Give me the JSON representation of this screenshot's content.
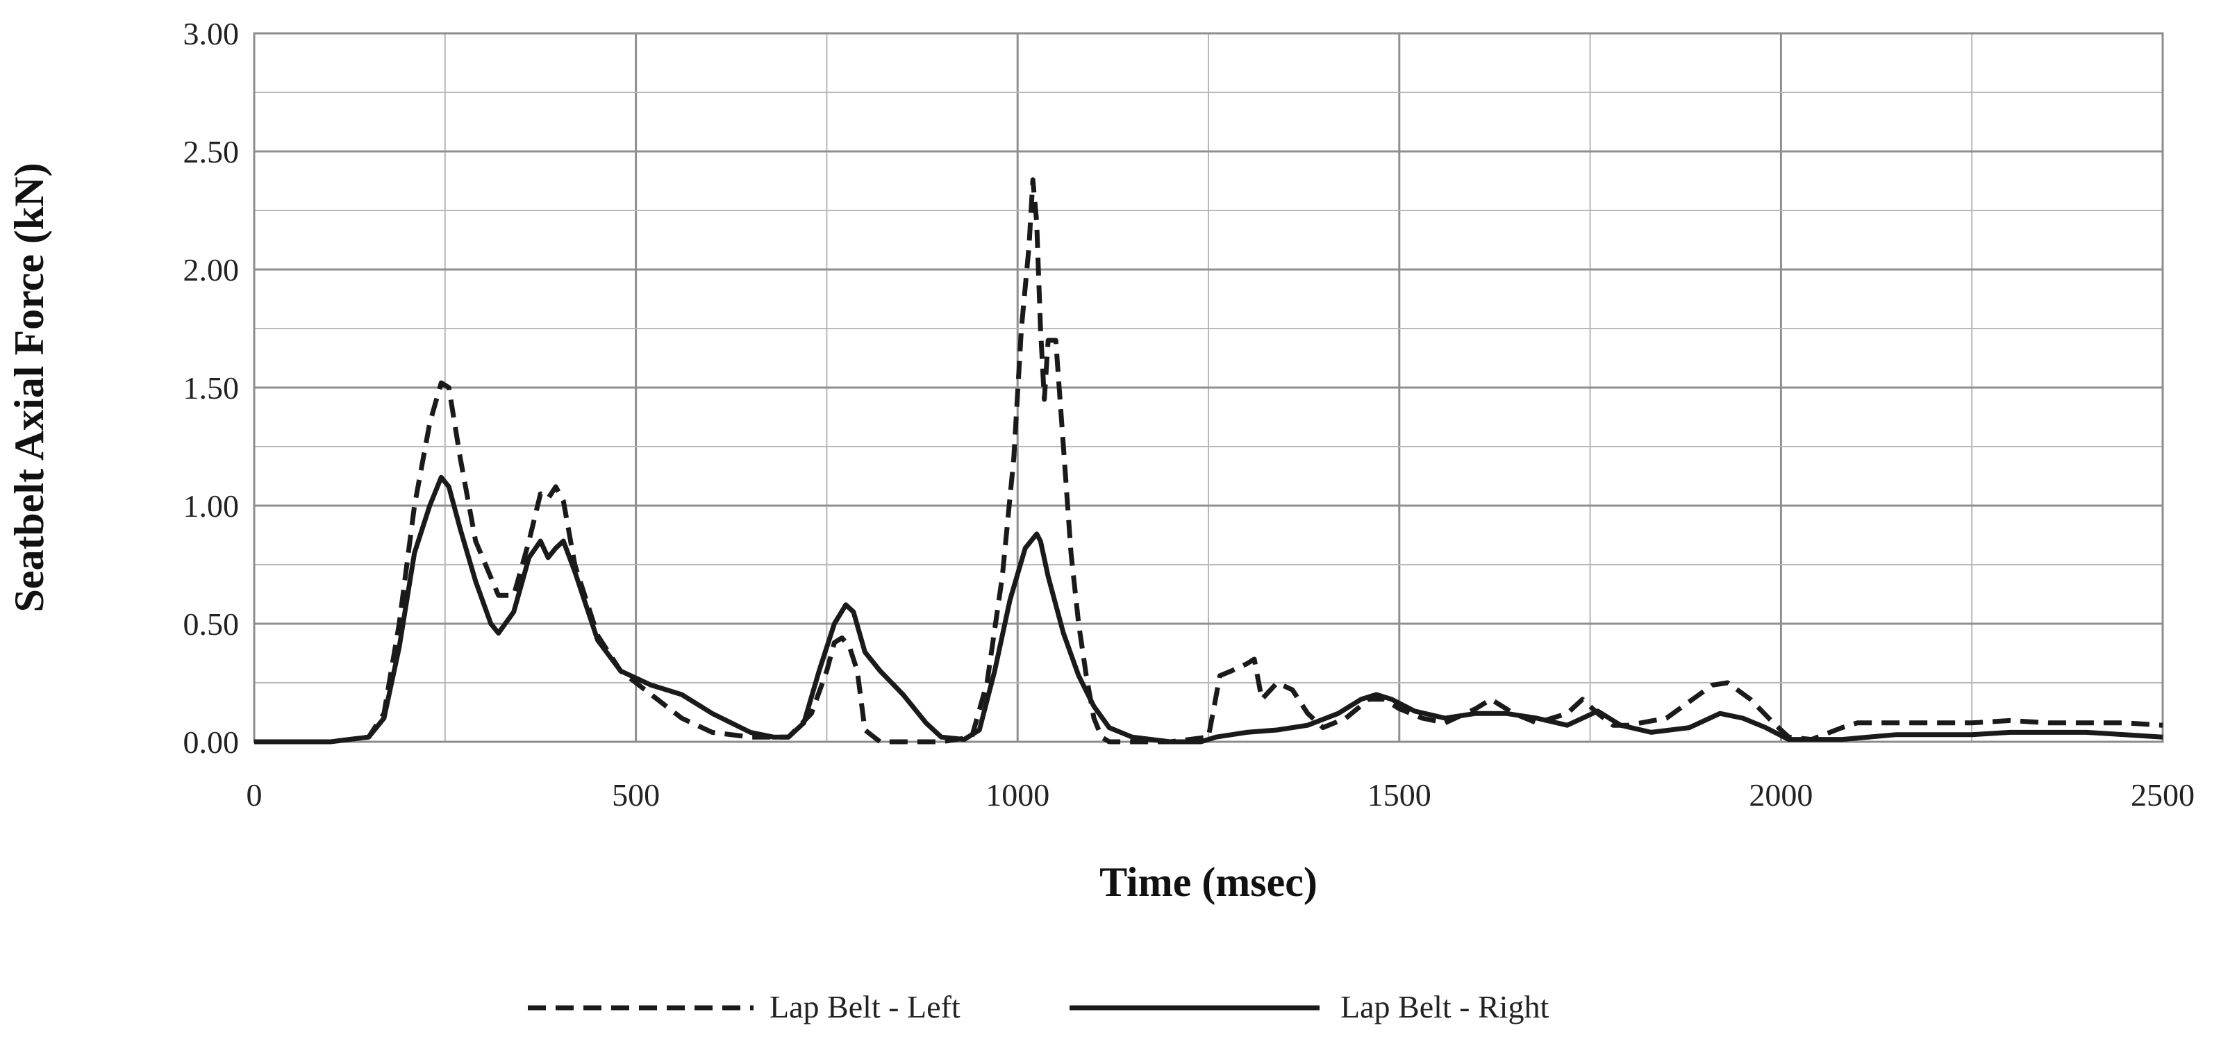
{
  "chart_data": {
    "type": "line",
    "xlabel": "Time (msec)",
    "ylabel": "Seatbelt Axial Force (kN)",
    "xlim": [
      0,
      2500
    ],
    "ylim": [
      0,
      3.0
    ],
    "xticks": [
      0,
      500,
      1000,
      1500,
      2000,
      2500
    ],
    "xtick_labels": [
      "0",
      "500",
      "1000",
      "1500",
      "2000",
      "2500"
    ],
    "yticks": [
      0,
      0.5,
      1.0,
      1.5,
      2.0,
      2.5,
      3.0
    ],
    "ytick_labels": [
      "0.00",
      "0.50",
      "1.00",
      "1.50",
      "2.00",
      "2.50",
      "3.00"
    ],
    "grid": true,
    "legend_position": "bottom",
    "series": [
      {
        "name": "Lap Belt - Left",
        "style": "dashed",
        "color": "#1a1a1a",
        "x": [
          0,
          100,
          150,
          170,
          190,
          210,
          230,
          245,
          255,
          270,
          290,
          320,
          340,
          360,
          375,
          385,
          395,
          405,
          420,
          450,
          480,
          520,
          560,
          600,
          650,
          700,
          730,
          750,
          760,
          770,
          780,
          790,
          800,
          820,
          850,
          900,
          940,
          960,
          980,
          995,
          1005,
          1015,
          1020,
          1025,
          1030,
          1035,
          1040,
          1050,
          1060,
          1070,
          1080,
          1090,
          1100,
          1110,
          1120,
          1200,
          1250,
          1265,
          1280,
          1300,
          1310,
          1320,
          1340,
          1360,
          1380,
          1400,
          1430,
          1460,
          1480,
          1500,
          1530,
          1560,
          1600,
          1620,
          1650,
          1680,
          1720,
          1740,
          1760,
          1780,
          1800,
          1850,
          1880,
          1910,
          1930,
          1960,
          1990,
          2010,
          2040,
          2080,
          2100,
          2150,
          2200,
          2250,
          2300,
          2350,
          2400,
          2450,
          2500
        ],
        "values": [
          0.0,
          0.0,
          0.02,
          0.12,
          0.5,
          1.0,
          1.35,
          1.52,
          1.5,
          1.2,
          0.85,
          0.62,
          0.62,
          0.85,
          1.05,
          1.03,
          1.08,
          1.02,
          0.75,
          0.45,
          0.3,
          0.2,
          0.1,
          0.04,
          0.02,
          0.02,
          0.12,
          0.3,
          0.42,
          0.44,
          0.4,
          0.3,
          0.05,
          0.0,
          0.0,
          0.0,
          0.02,
          0.25,
          0.7,
          1.2,
          1.75,
          2.1,
          2.38,
          2.2,
          1.75,
          1.45,
          1.7,
          1.7,
          1.25,
          0.8,
          0.5,
          0.28,
          0.1,
          0.02,
          0.0,
          0.0,
          0.02,
          0.28,
          0.3,
          0.33,
          0.35,
          0.18,
          0.25,
          0.22,
          0.12,
          0.06,
          0.1,
          0.18,
          0.18,
          0.14,
          0.1,
          0.08,
          0.14,
          0.18,
          0.12,
          0.08,
          0.12,
          0.18,
          0.12,
          0.07,
          0.07,
          0.1,
          0.17,
          0.24,
          0.25,
          0.18,
          0.08,
          0.02,
          0.01,
          0.06,
          0.08,
          0.08,
          0.08,
          0.08,
          0.09,
          0.08,
          0.08,
          0.08,
          0.07
        ]
      },
      {
        "name": "Lap Belt - Right",
        "style": "solid",
        "color": "#1a1a1a",
        "x": [
          0,
          100,
          150,
          170,
          190,
          210,
          230,
          245,
          255,
          270,
          290,
          310,
          320,
          340,
          360,
          375,
          385,
          395,
          405,
          420,
          450,
          480,
          520,
          560,
          600,
          650,
          680,
          700,
          720,
          740,
          760,
          775,
          785,
          800,
          820,
          850,
          880,
          900,
          930,
          950,
          970,
          990,
          1010,
          1025,
          1030,
          1040,
          1060,
          1080,
          1100,
          1120,
          1150,
          1200,
          1240,
          1260,
          1280,
          1300,
          1340,
          1380,
          1420,
          1450,
          1470,
          1490,
          1520,
          1560,
          1600,
          1640,
          1680,
          1720,
          1740,
          1760,
          1790,
          1830,
          1880,
          1920,
          1950,
          1980,
          2010,
          2040,
          2080,
          2150,
          2200,
          2250,
          2300,
          2350,
          2400,
          2450,
          2500
        ],
        "values": [
          0.0,
          0.0,
          0.02,
          0.1,
          0.4,
          0.8,
          1.0,
          1.12,
          1.08,
          0.9,
          0.68,
          0.5,
          0.46,
          0.55,
          0.78,
          0.85,
          0.78,
          0.82,
          0.85,
          0.72,
          0.43,
          0.3,
          0.24,
          0.2,
          0.12,
          0.04,
          0.02,
          0.02,
          0.08,
          0.3,
          0.5,
          0.58,
          0.55,
          0.38,
          0.3,
          0.2,
          0.08,
          0.02,
          0.01,
          0.05,
          0.3,
          0.6,
          0.82,
          0.88,
          0.85,
          0.7,
          0.46,
          0.28,
          0.15,
          0.06,
          0.02,
          0.0,
          0.0,
          0.02,
          0.03,
          0.04,
          0.05,
          0.07,
          0.12,
          0.18,
          0.2,
          0.18,
          0.13,
          0.1,
          0.12,
          0.12,
          0.1,
          0.07,
          0.1,
          0.13,
          0.07,
          0.04,
          0.06,
          0.12,
          0.1,
          0.06,
          0.01,
          0.01,
          0.01,
          0.03,
          0.03,
          0.03,
          0.04,
          0.04,
          0.04,
          0.03,
          0.02
        ]
      }
    ]
  }
}
